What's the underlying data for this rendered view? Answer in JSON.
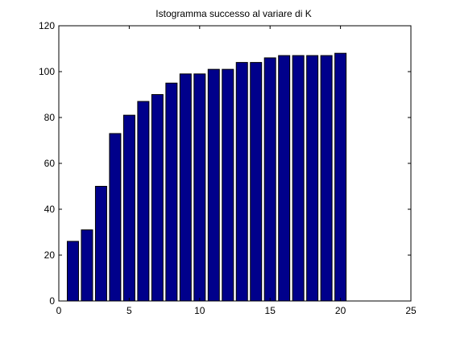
{
  "chart_data": {
    "type": "bar",
    "title": "Istogramma successo al variare di K",
    "xlabel": "",
    "ylabel": "",
    "x": [
      1,
      2,
      3,
      4,
      5,
      6,
      7,
      8,
      9,
      10,
      11,
      12,
      13,
      14,
      15,
      16,
      17,
      18,
      19,
      20
    ],
    "values": [
      26,
      31,
      50,
      73,
      81,
      87,
      90,
      95,
      99,
      99,
      101,
      101,
      104,
      104,
      106,
      107,
      107,
      107,
      107,
      108
    ],
    "xlim": [
      0,
      25
    ],
    "ylim": [
      0,
      120
    ],
    "xticks": [
      "0",
      "5",
      "10",
      "15",
      "20",
      "25"
    ],
    "yticks": [
      "0",
      "20",
      "40",
      "60",
      "80",
      "100",
      "120"
    ],
    "grid": false,
    "bar_color": "#00008B",
    "bar_edge_color": "#000000"
  }
}
